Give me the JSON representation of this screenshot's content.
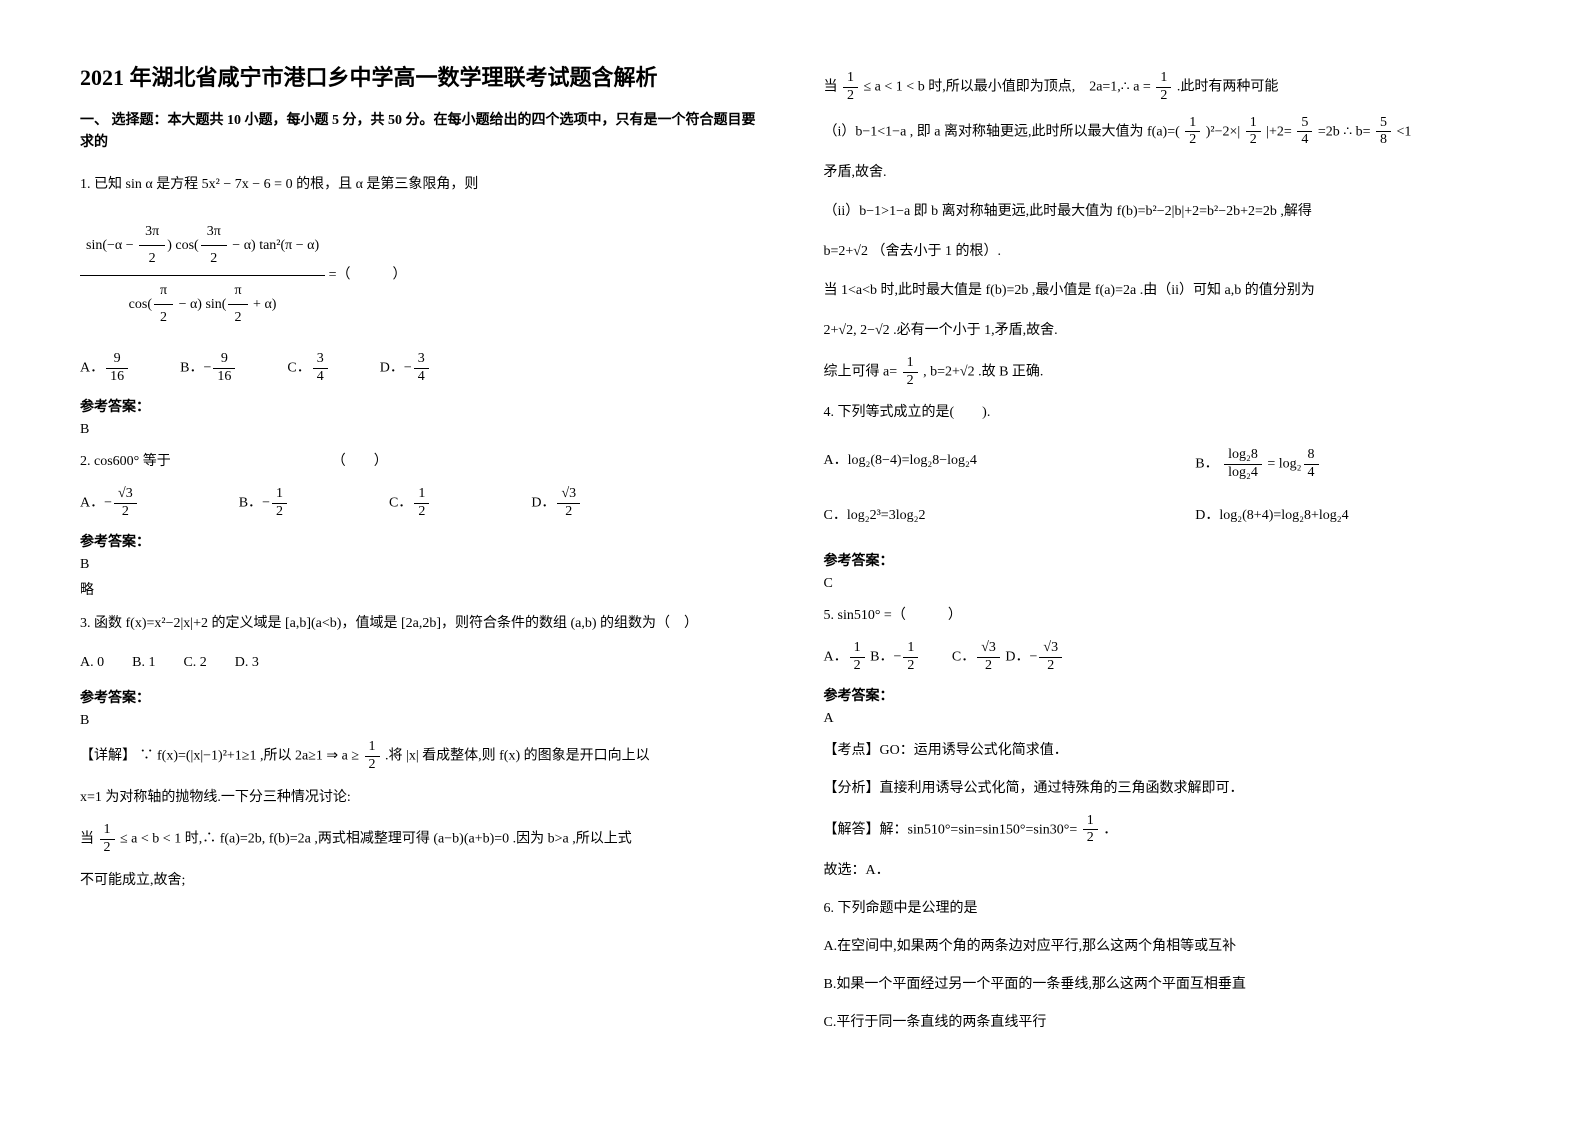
{
  "header": {
    "title": "2021 年湖北省咸宁市港口乡中学高一数学理联考试题含解析",
    "subtitle": "一、 选择题：本大题共 10 小题，每小题 5 分，共 50 分。在每小题给出的四个选项中，只有是一个符合题目要求的"
  },
  "q1": {
    "stem_prefix": "1. 已知",
    "stem_mid": " 是方程 5x² − 7x − 6 = 0 的根，且 ",
    "stem_suffix": " 是第三象限角，则",
    "eq_blank": " =（　　　）",
    "optA_label": "A．",
    "optB_label": "B．",
    "optC_label": "C．",
    "optD_label": "D．",
    "ref_label": "参考答案：",
    "ref_ans": "B"
  },
  "q2": {
    "stem": "2. cos600° 等于　　　　　　　　　　　　（　　）",
    "optA_label": "A．",
    "optB_label": "B．",
    "optC_label": "C．",
    "optD_label": "D．",
    "ref_label": "参考答案：",
    "ref_ans": "B",
    "lue": "略"
  },
  "q3": {
    "stem_a": "3. 函数 f(x)=x²−2|x|+2 的定义域是 [a,b](a<b)，值域是 [2a,2b]，则符合条件的数组 (a,b) 的组数为（　）",
    "options_line": "A. 0　　B. 1　　C. 2　　D. 3",
    "ref_label": "参考答案：",
    "ref_ans": "B",
    "detail_label": "【详解】",
    "detail_1a": "∵ f(x)=(|x|−1)²+1≥1 ,所以 2a≥1 ⇒ a ≥ ",
    "detail_1b": " .将 |x| 看成整体,则 f(x) 的图象是开口向上以",
    "detail_2": "x=1 为对称轴的抛物线.一下分三种情况讨论:",
    "detail_3a": "当 ",
    "detail_3b": " ≤ a < b < 1 时,∴ f(a)=2b, f(b)=2a ,两式相减整理可得 (a−b)(a+b)=0 .因为 b>a ,所以上式",
    "detail_4": "不可能成立,故舍;"
  },
  "right": {
    "r1a": "当 ",
    "r1b": " ≤ a < 1 < b 时,所以最小值即为顶点,　2a=1,∴ a = ",
    "r1c": " .此时有两种可能",
    "r2a": "（i）b−1<1−a , 即 a 离对称轴更远,此时所以最大值为 f(a)=(",
    "r2b": ")²−2×|",
    "r2c": "|+2=",
    "r2d": " =2b  ∴ b=",
    "r2e": " <1",
    "r3": "矛盾,故舍.",
    "r4a": "（ii）b−1>1−a 即 b 离对称轴更远,此时最大值为 f(b)=b²−2|b|+2=b²−2b+2=2b ,解得",
    "r5": "b=2+√2 （舍去小于 1 的根）.",
    "r6a": "当 1<a<b 时,此时最大值是 f(b)=2b ,最小值是 f(a)=2a .由（ii）可知 a,b 的值分别为",
    "r7": "2+√2, 2−√2 .必有一个小于 1,矛盾,故舍.",
    "r8a": "综上可得 a=",
    "r8b": ", b=2+√2 .故 B 正确."
  },
  "q4": {
    "stem": "4. 下列等式成立的是(　　).",
    "optA": "A．log₂(8−4)=log₂8−log₂4",
    "optB_pre": "B．",
    "optC": "C．log₂2³=3log₂2",
    "optD": "D．log₂(8+4)=log₂8+log₂4",
    "ref_label": "参考答案：",
    "ref_ans": "C"
  },
  "q5": {
    "stem": "5. sin510° =（　　　）",
    "optA_label": "A．",
    "optB_label": " B．−",
    "optC_label": "　　C．",
    "optD_label": " D．−",
    "ref_label": "参考答案：",
    "ref_ans": "A",
    "kd": "【考点】GO：运用诱导公式化简求值．",
    "fx": "【分析】直接利用诱导公式化简，通过特殊角的三角函数求解即可．",
    "jd_pre": "【解答】解：sin510°=sin=sin150°=sin30°=",
    "jd_post": "．",
    "gx": "故选：A．"
  },
  "q6": {
    "stem": "6. 下列命题中是公理的是",
    "optA": "A.在空间中,如果两个角的两条边对应平行,那么这两个角相等或互补",
    "optB": "B.如果一个平面经过另一个平面的一条垂线,那么这两个平面互相垂直",
    "optC": "C.平行于同一条直线的两条直线平行"
  }
}
